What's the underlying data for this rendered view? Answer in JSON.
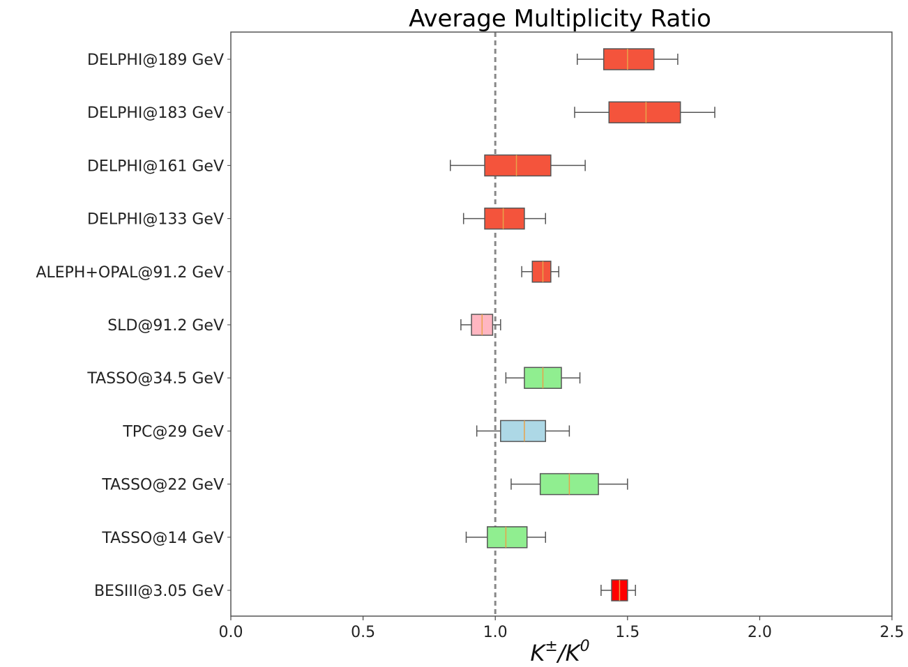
{
  "chart_data": {
    "type": "boxplot",
    "title": "Average Multiplicity Ratio",
    "xlabel_base": "K",
    "xlabel_sup1": "±",
    "xlabel_mid": "/K",
    "xlabel_sup2": "0",
    "xlim": [
      0.0,
      2.5
    ],
    "xticks": [
      "0.0",
      "0.5",
      "1.0",
      "1.5",
      "2.0",
      "2.5"
    ],
    "reference_line": 1.0,
    "grid": false,
    "categories": [
      {
        "label": "DELPHI@189 GeV",
        "whisker_low": 1.31,
        "q1": 1.41,
        "median": 1.5,
        "q3": 1.6,
        "whisker_high": 1.69,
        "color": "#f4543c"
      },
      {
        "label": "DELPHI@183 GeV",
        "whisker_low": 1.3,
        "q1": 1.43,
        "median": 1.57,
        "q3": 1.7,
        "whisker_high": 1.83,
        "color": "#f4543c"
      },
      {
        "label": "DELPHI@161 GeV",
        "whisker_low": 0.83,
        "q1": 0.96,
        "median": 1.08,
        "q3": 1.21,
        "whisker_high": 1.34,
        "color": "#f4543c"
      },
      {
        "label": "DELPHI@133 GeV",
        "whisker_low": 0.88,
        "q1": 0.96,
        "median": 1.03,
        "q3": 1.11,
        "whisker_high": 1.19,
        "color": "#f4543c"
      },
      {
        "label": "ALEPH+OPAL@91.2 GeV",
        "whisker_low": 1.1,
        "q1": 1.14,
        "median": 1.18,
        "q3": 1.21,
        "whisker_high": 1.24,
        "color": "#f4543c"
      },
      {
        "label": "SLD@91.2 GeV",
        "whisker_low": 0.87,
        "q1": 0.91,
        "median": 0.95,
        "q3": 0.99,
        "whisker_high": 1.02,
        "color": "#ffb6c1"
      },
      {
        "label": "TASSO@34.5 GeV",
        "whisker_low": 1.04,
        "q1": 1.11,
        "median": 1.18,
        "q3": 1.25,
        "whisker_high": 1.32,
        "color": "#90ee90"
      },
      {
        "label": "TPC@29 GeV",
        "whisker_low": 0.93,
        "q1": 1.02,
        "median": 1.11,
        "q3": 1.19,
        "whisker_high": 1.28,
        "color": "#add8e6"
      },
      {
        "label": "TASSO@22 GeV",
        "whisker_low": 1.06,
        "q1": 1.17,
        "median": 1.28,
        "q3": 1.39,
        "whisker_high": 1.5,
        "color": "#90ee90"
      },
      {
        "label": "TASSO@14 GeV",
        "whisker_low": 0.89,
        "q1": 0.97,
        "median": 1.04,
        "q3": 1.12,
        "whisker_high": 1.19,
        "color": "#90ee90"
      },
      {
        "label": "BESIII@3.05 GeV",
        "whisker_low": 1.4,
        "q1": 1.44,
        "median": 1.47,
        "q3": 1.5,
        "whisker_high": 1.53,
        "color": "#ff0000"
      }
    ],
    "median_color": "#e8a34a",
    "reference_line_color": "#888888"
  }
}
